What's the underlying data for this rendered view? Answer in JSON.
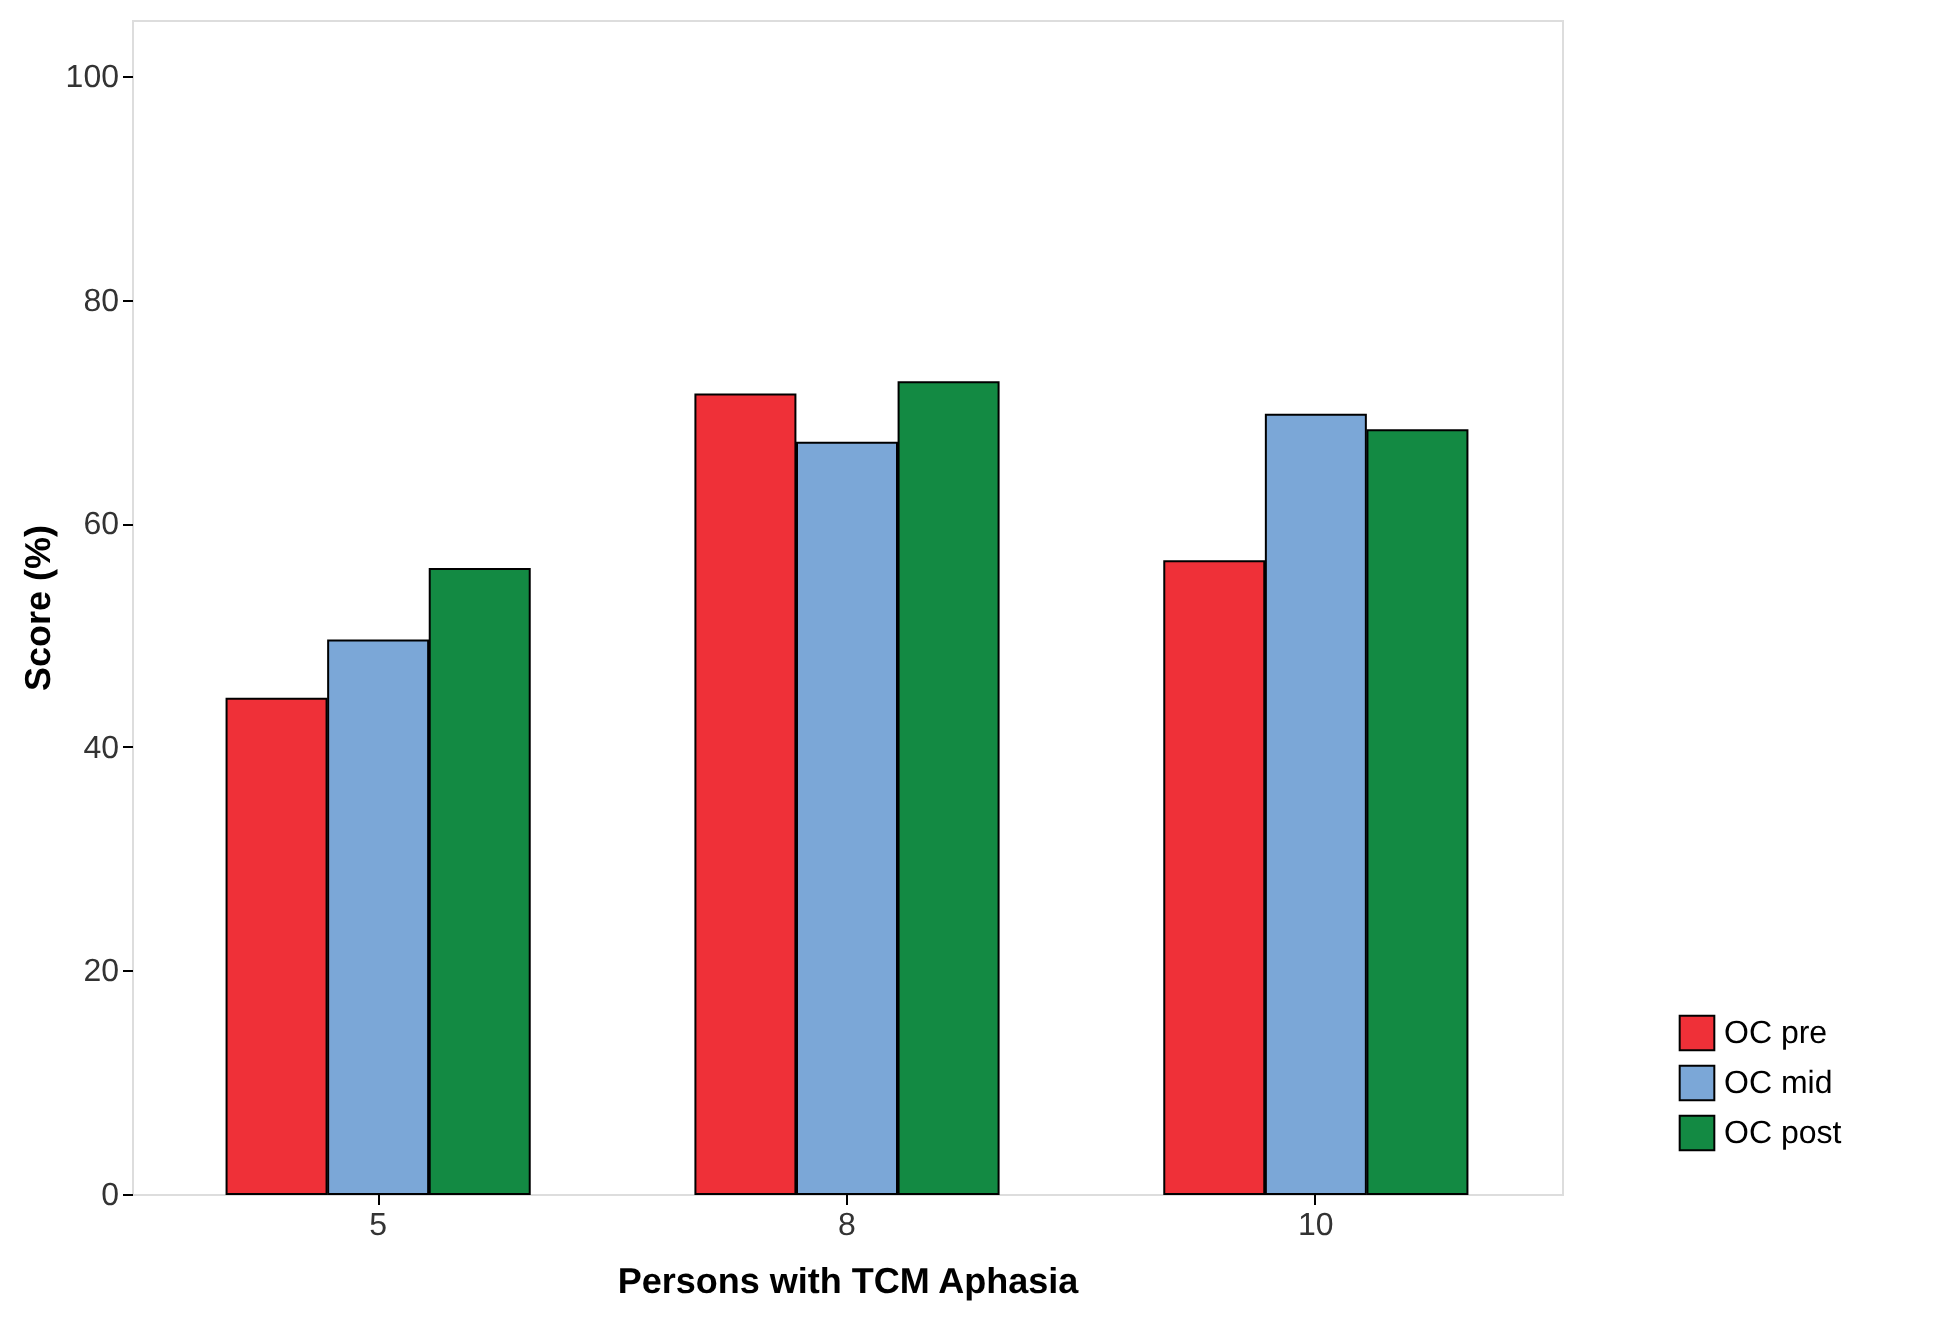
{
  "chart_data": {
    "type": "bar",
    "xlabel": "Persons with TCM Aphasia",
    "ylabel": "Score (%)",
    "categories": [
      "5",
      "8",
      "10"
    ],
    "series": [
      {
        "name": "OC pre",
        "color": "#ef3038",
        "values": [
          44.3,
          71.5,
          56.6
        ]
      },
      {
        "name": "OC mid",
        "color": "#7ba7d7",
        "values": [
          49.5,
          67.2,
          69.7
        ]
      },
      {
        "name": "OC post",
        "color": "#138a43",
        "values": [
          55.9,
          72.6,
          68.3
        ]
      }
    ],
    "ylim": [
      0,
      105
    ],
    "yticks": [
      0,
      20,
      40,
      60,
      80,
      100
    ],
    "grid": false,
    "legend": "bottom right"
  }
}
